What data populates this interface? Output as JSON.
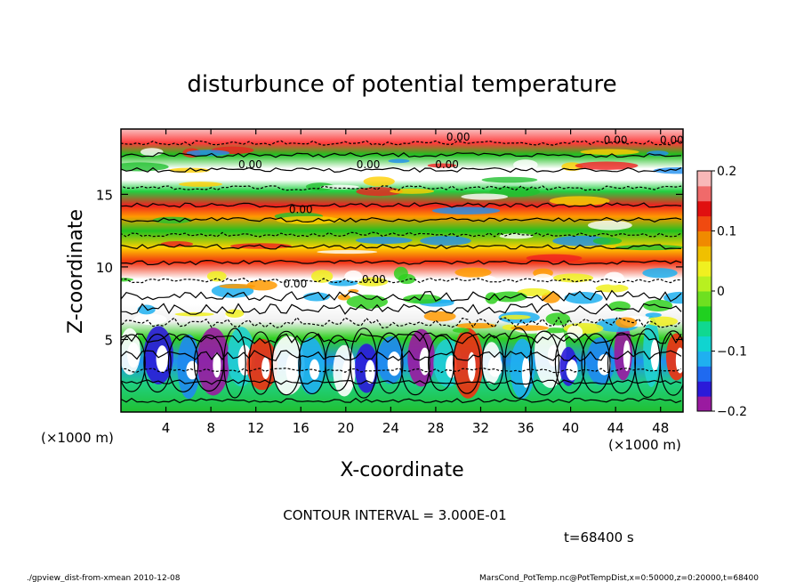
{
  "chart_data": {
    "type": "heatmap",
    "title": "disturbunce of potential temperature",
    "xlabel": "X-coordinate",
    "ylabel": "Z-coordinate",
    "x_unit_left": "(×1000 m)",
    "x_unit_right": "(×1000 m)",
    "x_range": [
      0,
      50
    ],
    "y_range": [
      0,
      19.5
    ],
    "x_ticks": [
      4,
      8,
      12,
      16,
      20,
      24,
      28,
      32,
      36,
      40,
      44,
      48
    ],
    "y_ticks": [
      5,
      10,
      15
    ],
    "colorbar": {
      "range": [
        -0.2,
        0.2
      ],
      "tick_values": [
        0.2,
        0.1,
        0,
        -0.1,
        -0.2
      ],
      "tick_labels": [
        "0.2",
        "0.1",
        "0",
        "−0.1",
        "−0.2"
      ],
      "colors": [
        "#9a1aa0",
        "#2b1ad9",
        "#1f6af0",
        "#1fb0f0",
        "#10d4d0",
        "#10d890",
        "#20d020",
        "#6ee020",
        "#b8f020",
        "#f0f020",
        "#f0c000",
        "#f08a00",
        "#f04a10",
        "#e01010",
        "#f06a6a",
        "#f8b8b8"
      ]
    },
    "contour_interval": "CONTOUR INTERVAL = 3.000E-01",
    "contour_labels": [
      "0.00",
      "0.00",
      "0.00",
      "0.00",
      "0.00",
      "0.00",
      "0.00",
      "0.00",
      "0.00"
    ],
    "time_label": "t=68400 s",
    "grid": false
  },
  "footer": {
    "left": "./gpview_dist-from-xmean   2010-12-08",
    "right": "MarsCond_PotTemp.nc@PotTempDist,x=0:50000,z=0:20000,t=68400"
  }
}
